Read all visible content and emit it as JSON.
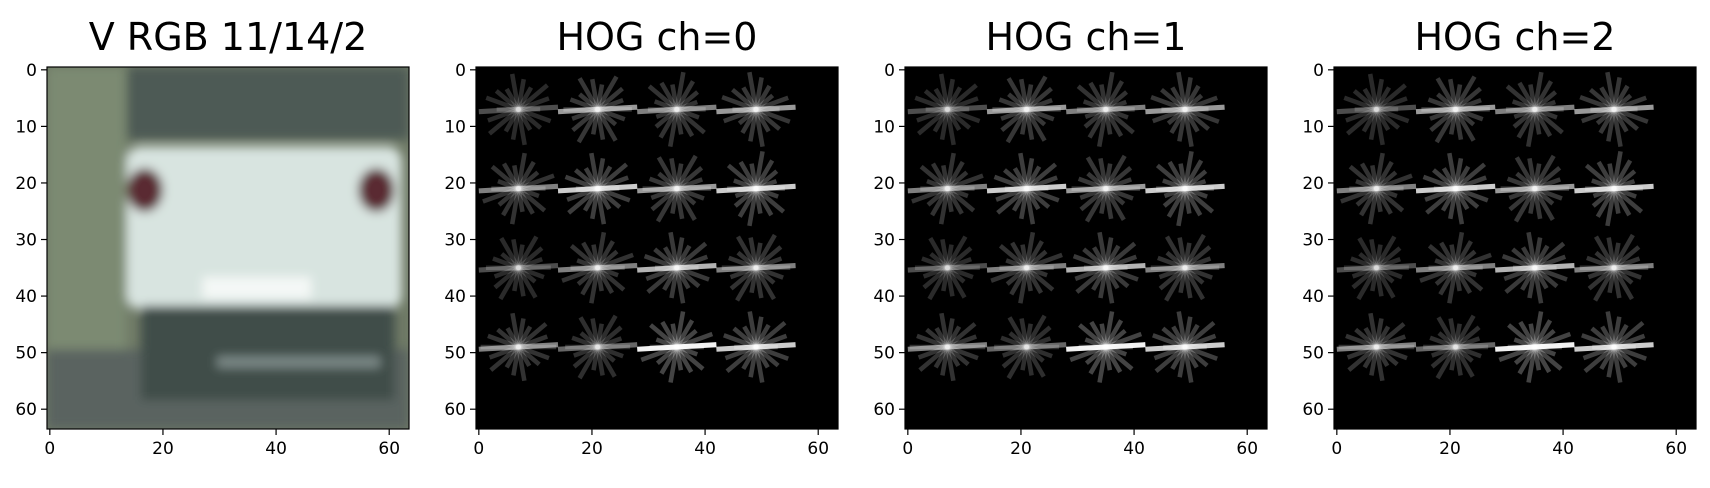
{
  "figure": {
    "panels": [
      {
        "title": "V RGB 11/14/2",
        "kind": "image"
      },
      {
        "title": "HOG ch=0",
        "kind": "hog"
      },
      {
        "title": "HOG ch=1",
        "kind": "hog"
      },
      {
        "title": "HOG ch=2",
        "kind": "hog"
      }
    ]
  },
  "chart_data": [
    {
      "type": "image",
      "title": "V RGB 11/14/2",
      "xlabel": "",
      "ylabel": "",
      "xlim": [
        0,
        63
      ],
      "ylim": [
        63,
        0
      ],
      "xticks": [
        "0",
        "20",
        "40",
        "60"
      ],
      "yticks": [
        "0",
        "10",
        "20",
        "30",
        "40",
        "50",
        "60"
      ],
      "xtick_values": [
        0,
        20,
        40,
        60
      ],
      "ytick_values": [
        0,
        10,
        20,
        30,
        40,
        50,
        60
      ],
      "content": "rear view of a white car (photo)",
      "colors": {
        "car_body": "#d8e4e0",
        "background": "#6f7a66",
        "tail_lights": "#5a2a30"
      }
    },
    {
      "type": "heatmap",
      "title": "HOG ch=0",
      "xlabel": "",
      "ylabel": "",
      "xlim": [
        0,
        63
      ],
      "ylim": [
        63,
        0
      ],
      "xticks": [
        "0",
        "20",
        "40",
        "60"
      ],
      "yticks": [
        "0",
        "10",
        "20",
        "30",
        "40",
        "50",
        "60"
      ],
      "xtick_values": [
        0,
        20,
        40,
        60
      ],
      "ytick_values": [
        0,
        10,
        20,
        30,
        40,
        50,
        60
      ],
      "cells_per_axis": 4,
      "cell_centers": [
        7,
        21,
        35,
        49
      ],
      "cell_strength": [
        [
          0.3,
          0.6,
          0.5,
          0.6
        ],
        [
          0.5,
          0.8,
          0.6,
          0.8
        ],
        [
          0.3,
          0.5,
          0.7,
          0.5
        ],
        [
          0.5,
          0.4,
          0.95,
          0.8
        ]
      ],
      "colormap": "gray"
    },
    {
      "type": "heatmap",
      "title": "HOG ch=1",
      "xlabel": "",
      "ylabel": "",
      "xlim": [
        0,
        63
      ],
      "ylim": [
        63,
        0
      ],
      "xticks": [
        "0",
        "20",
        "40",
        "60"
      ],
      "yticks": [
        "0",
        "10",
        "20",
        "30",
        "40",
        "50",
        "60"
      ],
      "xtick_values": [
        0,
        20,
        40,
        60
      ],
      "ytick_values": [
        0,
        10,
        20,
        30,
        40,
        50,
        60
      ],
      "cells_per_axis": 4,
      "cell_centers": [
        7,
        21,
        35,
        49
      ],
      "cell_strength": [
        [
          0.3,
          0.6,
          0.5,
          0.6
        ],
        [
          0.5,
          0.8,
          0.6,
          0.8
        ],
        [
          0.3,
          0.5,
          0.7,
          0.5
        ],
        [
          0.5,
          0.4,
          0.95,
          0.8
        ]
      ],
      "colormap": "gray"
    },
    {
      "type": "heatmap",
      "title": "HOG ch=2",
      "xlabel": "",
      "ylabel": "",
      "xlim": [
        0,
        63
      ],
      "ylim": [
        63,
        0
      ],
      "xticks": [
        "0",
        "20",
        "40",
        "60"
      ],
      "yticks": [
        "0",
        "10",
        "20",
        "30",
        "40",
        "50",
        "60"
      ],
      "xtick_values": [
        0,
        20,
        40,
        60
      ],
      "ytick_values": [
        0,
        10,
        20,
        30,
        40,
        50,
        60
      ],
      "cells_per_axis": 4,
      "cell_centers": [
        7,
        21,
        35,
        49
      ],
      "cell_strength": [
        [
          0.3,
          0.6,
          0.5,
          0.6
        ],
        [
          0.5,
          0.8,
          0.6,
          0.8
        ],
        [
          0.3,
          0.5,
          0.7,
          0.5
        ],
        [
          0.5,
          0.4,
          0.95,
          0.8
        ]
      ],
      "colormap": "gray"
    }
  ]
}
